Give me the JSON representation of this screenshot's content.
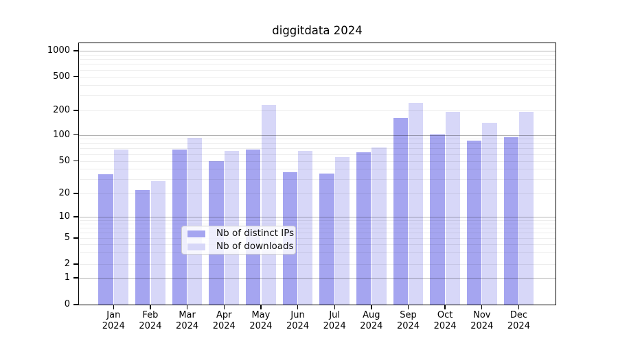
{
  "title": "diggitdata 2024",
  "chart_data": {
    "type": "bar",
    "title": "diggitdata 2024",
    "categories": [
      {
        "month": "Jan",
        "year": "2024"
      },
      {
        "month": "Feb",
        "year": "2024"
      },
      {
        "month": "Mar",
        "year": "2024"
      },
      {
        "month": "Apr",
        "year": "2024"
      },
      {
        "month": "May",
        "year": "2024"
      },
      {
        "month": "Jun",
        "year": "2024"
      },
      {
        "month": "Jul",
        "year": "2024"
      },
      {
        "month": "Aug",
        "year": "2024"
      },
      {
        "month": "Sep",
        "year": "2024"
      },
      {
        "month": "Oct",
        "year": "2024"
      },
      {
        "month": "Nov",
        "year": "2024"
      },
      {
        "month": "Dec",
        "year": "2024"
      }
    ],
    "series": [
      {
        "name": "Nb of distinct IPs",
        "color": "#a5a5f0",
        "values": [
          34,
          22,
          67,
          49,
          67,
          36,
          35,
          62,
          160,
          100,
          85,
          93
        ]
      },
      {
        "name": "Nb of downloads",
        "color": "#d7d7f8",
        "values": [
          67,
          28,
          91,
          65,
          230,
          65,
          55,
          71,
          245,
          190,
          140,
          190
        ]
      }
    ],
    "yscale": "symlog",
    "yticks": [
      0,
      1,
      2,
      5,
      10,
      20,
      50,
      100,
      200,
      500,
      1000
    ],
    "ylim": [
      0,
      1250
    ],
    "grid": true,
    "legend_position": "lower-center"
  }
}
